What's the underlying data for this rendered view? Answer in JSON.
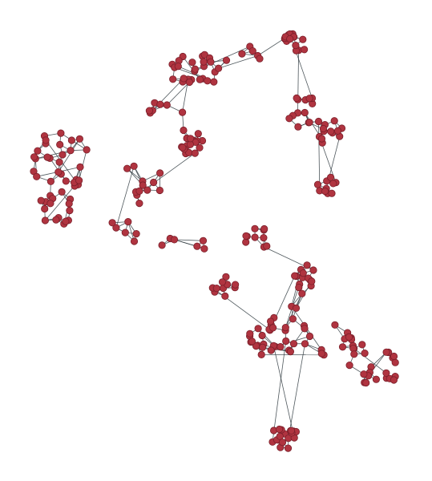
{
  "diagram": {
    "type": "network-graph",
    "node_color": "#b03440",
    "node_stroke_color": "#7a1f2a",
    "edge_color": "#2f3a40",
    "background_color": "#ffffff",
    "labels_visible": false
  }
}
